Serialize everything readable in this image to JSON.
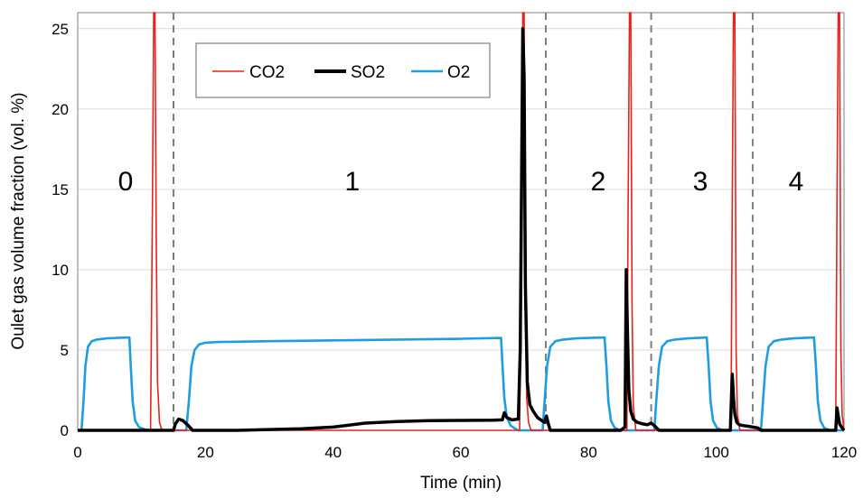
{
  "chart_data": {
    "type": "line",
    "title": "",
    "xlabel": "Time (min)",
    "ylabel": "Oulet gas volume fraction (vol. %)",
    "xlim": [
      0,
      120
    ],
    "ylim": [
      0,
      26
    ],
    "xticks": [
      0,
      20,
      40,
      60,
      80,
      100,
      120
    ],
    "yticks": [
      0,
      5,
      10,
      15,
      20,
      25
    ],
    "grid": "horizontal",
    "legend": "top-left",
    "series": [
      {
        "name": "CO2",
        "color": "#e8221c",
        "x": [
          0,
          11.4,
          11.7,
          11.9,
          12.1,
          12.3,
          12.5,
          12.8,
          13.2,
          15.0,
          69.2,
          69.5,
          69.7,
          69.9,
          70.1,
          70.3,
          70.6,
          71.0,
          86.0,
          86.2,
          86.4,
          86.6,
          86.8,
          87.0,
          87.4,
          102.3,
          102.5,
          102.7,
          102.9,
          103.1,
          103.3,
          103.7,
          118.7,
          118.9,
          119.1,
          119.3,
          119.5,
          119.7,
          120
        ],
        "y": [
          0,
          0,
          14,
          26,
          26,
          12,
          3,
          0.5,
          0,
          0,
          0,
          12,
          26,
          26,
          10,
          2,
          0.5,
          0,
          0,
          14,
          26,
          26,
          8,
          1.5,
          0,
          0,
          14,
          26,
          26,
          5,
          1,
          0,
          0,
          14,
          26,
          26,
          5,
          1,
          0
        ]
      },
      {
        "name": "SO2",
        "color": "#000000",
        "x": [
          0,
          15.0,
          15.3,
          15.8,
          16.5,
          17.3,
          18.0,
          25,
          35,
          40,
          45,
          50,
          55,
          60,
          65,
          66.5,
          66.8,
          67.2,
          68.0,
          69.0,
          69.3,
          69.5,
          69.7,
          69.9,
          70.1,
          70.4,
          70.8,
          71.3,
          72.0,
          72.7,
          73.1,
          73.4,
          73.7,
          74.0,
          85.0,
          85.7,
          85.9,
          86.1,
          86.3,
          86.6,
          87.0,
          87.6,
          88.5,
          89.2,
          89.8,
          90.3,
          91.0,
          102.2,
          102.5,
          102.7,
          102.9,
          103.2,
          103.6,
          104.2,
          105.0,
          106.5,
          107.0,
          118.7,
          118.9,
          119.1,
          119.3,
          119.6,
          119.9,
          120
        ],
        "y": [
          0,
          0,
          0.4,
          0.7,
          0.6,
          0.3,
          0,
          0,
          0.1,
          0.2,
          0.45,
          0.55,
          0.6,
          0.62,
          0.63,
          0.65,
          1.1,
          0.8,
          0.65,
          0.7,
          5,
          15,
          25,
          22,
          9,
          3,
          1.6,
          1.2,
          0.8,
          0.6,
          0.5,
          0.9,
          0.4,
          0,
          0,
          0.2,
          10,
          6,
          2.5,
          1.2,
          0.7,
          0.5,
          0.4,
          0.35,
          0.45,
          0.3,
          0,
          0,
          3.5,
          2.0,
          1.0,
          0.5,
          0.35,
          0.3,
          0.25,
          0.15,
          0,
          0,
          1.4,
          0.9,
          0.4,
          0.2,
          0.05,
          0
        ]
      },
      {
        "name": "O2",
        "color": "#1e9de0",
        "x": [
          0,
          0.6,
          0.9,
          1.2,
          1.6,
          2.2,
          3.0,
          4.5,
          6.0,
          8.1,
          8.3,
          8.6,
          9.0,
          9.6,
          10.5,
          11.5,
          17.0,
          17.4,
          17.8,
          18.3,
          19.0,
          20.0,
          22.0,
          30,
          40,
          50,
          60,
          66.3,
          66.5,
          66.8,
          67.2,
          67.8,
          68.5,
          69.0,
          72.8,
          73.1,
          73.5,
          74.0,
          74.8,
          76.0,
          78.0,
          80.0,
          82.5,
          82.8,
          83.1,
          83.5,
          84.1,
          85.0,
          90.3,
          90.6,
          91.0,
          91.5,
          92.3,
          93.5,
          95.5,
          98.5,
          98.8,
          99.1,
          99.5,
          100.1,
          101.0,
          107.0,
          107.3,
          107.7,
          108.2,
          109.0,
          110.2,
          112.0,
          115.3,
          115.6,
          115.9,
          116.3,
          116.9,
          117.8,
          120
        ],
        "y": [
          0,
          0,
          1.8,
          4.0,
          5.2,
          5.55,
          5.65,
          5.72,
          5.75,
          5.78,
          4.0,
          1.8,
          0.6,
          0.2,
          0.05,
          0,
          0,
          1.8,
          4.0,
          5.0,
          5.35,
          5.45,
          5.5,
          5.55,
          5.6,
          5.65,
          5.7,
          5.75,
          4.2,
          2.0,
          0.8,
          0.3,
          0.1,
          0,
          0,
          1.8,
          4.0,
          5.2,
          5.55,
          5.65,
          5.72,
          5.75,
          5.78,
          4.0,
          1.8,
          0.6,
          0.15,
          0,
          0,
          1.8,
          4.0,
          5.2,
          5.55,
          5.65,
          5.72,
          5.78,
          4.0,
          1.8,
          0.6,
          0.15,
          0,
          0,
          1.8,
          4.0,
          5.2,
          5.55,
          5.65,
          5.72,
          5.78,
          4.0,
          1.8,
          0.6,
          0.15,
          0,
          0
        ]
      }
    ],
    "dividers": [
      15.0,
      73.3,
      89.8,
      105.7
    ],
    "regions": [
      {
        "label": "0",
        "x": 7.5,
        "y": 15.5
      },
      {
        "label": "1",
        "x": 43,
        "y": 15.5
      },
      {
        "label": "2",
        "x": 81.5,
        "y": 15.5
      },
      {
        "label": "3",
        "x": 97.5,
        "y": 15.5
      },
      {
        "label": "4",
        "x": 112.5,
        "y": 15.5
      }
    ]
  }
}
